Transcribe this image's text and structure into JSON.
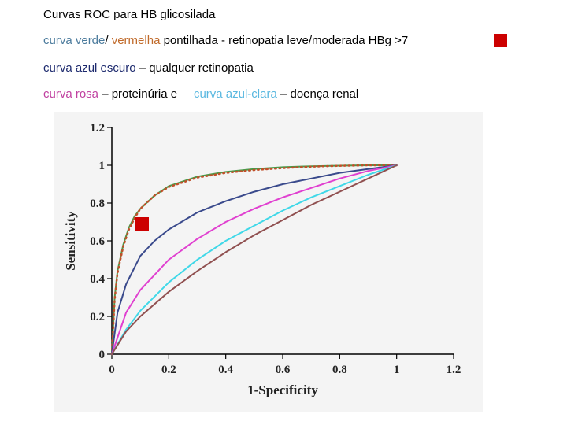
{
  "text": {
    "line0": "Curvas ROC para HB glicosilada",
    "line1": {
      "green": "curva verde",
      "sep": "/ ",
      "red": "vermelha",
      "rest": " pontilhada  - retinopatia leve/moderada HBg >7"
    },
    "line2": {
      "blue": "curva azul escuro",
      "rest": " – qualquer retinopatia"
    },
    "line3": {
      "pink": "curva rosa",
      "rest1": " – proteinúria e     ",
      "cyan": "curva azul-clara",
      "rest2": " – doença renal"
    }
  },
  "colors": {
    "marker": "#cc0000",
    "chart_background": "#f4f4f4"
  },
  "chart_data": {
    "type": "line",
    "xlabel": "1-Specificity",
    "ylabel": "Sensitivity",
    "xlim": [
      0,
      1.2
    ],
    "ylim": [
      0,
      1.2
    ],
    "xticks": [
      "0",
      "0.2",
      "0.4",
      "0.6",
      "0.8",
      "1",
      "1.2"
    ],
    "yticks": [
      "0",
      "0.2",
      "0.4",
      "0.6",
      "0.8",
      "1",
      "1.2"
    ],
    "grid": false,
    "series": [
      {
        "color": "#4a9a4a",
        "style": "solid",
        "x": [
          0,
          0.01,
          0.02,
          0.04,
          0.06,
          0.08,
          0.1,
          0.15,
          0.2,
          0.3,
          0.4,
          0.5,
          0.6,
          0.7,
          0.8,
          0.9,
          1.0
        ],
        "y": [
          0,
          0.3,
          0.44,
          0.58,
          0.67,
          0.73,
          0.77,
          0.84,
          0.89,
          0.94,
          0.965,
          0.98,
          0.99,
          0.995,
          0.998,
          1.0,
          1.0
        ]
      },
      {
        "color": "#c0502a",
        "style": "dotted",
        "x": [
          0,
          0.01,
          0.02,
          0.04,
          0.06,
          0.08,
          0.1,
          0.15,
          0.2,
          0.3,
          0.4,
          0.5,
          0.6,
          0.7,
          0.8,
          0.9,
          1.0
        ],
        "y": [
          0,
          0.29,
          0.43,
          0.57,
          0.66,
          0.72,
          0.77,
          0.84,
          0.885,
          0.935,
          0.96,
          0.975,
          0.985,
          0.993,
          0.997,
          1.0,
          1.0
        ]
      },
      {
        "color": "#3a4a8c",
        "style": "solid",
        "x": [
          0,
          0.02,
          0.05,
          0.1,
          0.15,
          0.2,
          0.3,
          0.4,
          0.5,
          0.6,
          0.7,
          0.8,
          0.9,
          1.0
        ],
        "y": [
          0,
          0.22,
          0.37,
          0.52,
          0.6,
          0.66,
          0.75,
          0.81,
          0.86,
          0.9,
          0.93,
          0.96,
          0.98,
          1.0
        ]
      },
      {
        "color": "#e040d0",
        "style": "solid",
        "x": [
          0,
          0.05,
          0.1,
          0.2,
          0.3,
          0.4,
          0.5,
          0.6,
          0.7,
          0.8,
          0.9,
          1.0
        ],
        "y": [
          0,
          0.22,
          0.34,
          0.5,
          0.61,
          0.7,
          0.77,
          0.83,
          0.88,
          0.93,
          0.97,
          1.0
        ]
      },
      {
        "color": "#40d8e8",
        "style": "solid",
        "x": [
          0,
          0.05,
          0.1,
          0.2,
          0.3,
          0.4,
          0.5,
          0.6,
          0.7,
          0.8,
          0.9,
          1.0
        ],
        "y": [
          0,
          0.13,
          0.23,
          0.38,
          0.5,
          0.6,
          0.68,
          0.76,
          0.83,
          0.89,
          0.95,
          1.0
        ]
      },
      {
        "color": "#905050",
        "style": "solid",
        "x": [
          0,
          0.05,
          0.1,
          0.2,
          0.3,
          0.4,
          0.5,
          0.6,
          0.7,
          0.8,
          0.9,
          1.0
        ],
        "y": [
          0,
          0.12,
          0.2,
          0.33,
          0.44,
          0.54,
          0.63,
          0.71,
          0.79,
          0.86,
          0.93,
          1.0
        ]
      }
    ]
  }
}
